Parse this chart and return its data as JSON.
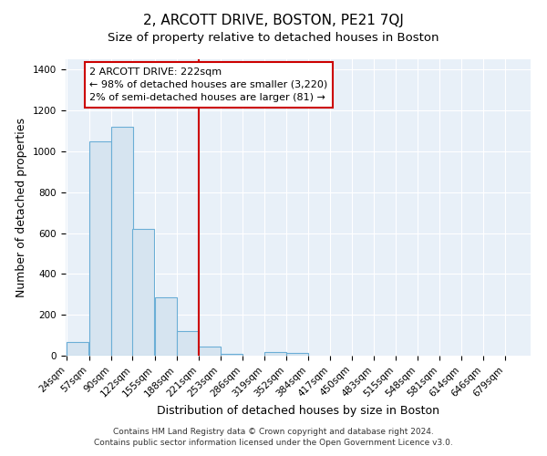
{
  "title": "2, ARCOTT DRIVE, BOSTON, PE21 7QJ",
  "subtitle": "Size of property relative to detached houses in Boston",
  "xlabel": "Distribution of detached houses by size in Boston",
  "ylabel": "Number of detached properties",
  "footnote1": "Contains HM Land Registry data © Crown copyright and database right 2024.",
  "footnote2": "Contains public sector information licensed under the Open Government Licence v3.0.",
  "bin_labels": [
    "24sqm",
    "57sqm",
    "90sqm",
    "122sqm",
    "155sqm",
    "188sqm",
    "221sqm",
    "253sqm",
    "286sqm",
    "319sqm",
    "352sqm",
    "384sqm",
    "417sqm",
    "450sqm",
    "483sqm",
    "515sqm",
    "548sqm",
    "581sqm",
    "614sqm",
    "646sqm",
    "679sqm"
  ],
  "bin_starts": [
    24,
    57,
    90,
    122,
    155,
    188,
    221,
    253,
    286,
    319,
    352,
    384,
    417,
    450,
    483,
    515,
    548,
    581,
    614,
    646,
    679
  ],
  "bar_values": [
    65,
    1050,
    1120,
    620,
    285,
    120,
    45,
    10,
    0,
    20,
    15,
    0,
    0,
    0,
    0,
    0,
    0,
    0,
    0,
    0,
    0
  ],
  "bar_color": "#d6e4f0",
  "bar_edge_color": "#6baed6",
  "property_line_x": 221,
  "property_line_label": "2 ARCOTT DRIVE: 222sqm",
  "annotation_line1": "← 98% of detached houses are smaller (3,220)",
  "annotation_line2": "2% of semi-detached houses are larger (81) →",
  "annotation_box_facecolor": "#ffffff",
  "annotation_box_edgecolor": "#cc0000",
  "vline_color": "#cc0000",
  "ylim": [
    0,
    1450
  ],
  "yticks": [
    0,
    200,
    400,
    600,
    800,
    1000,
    1200,
    1400
  ],
  "bin_width": 33,
  "figure_bg": "#ffffff",
  "axes_bg": "#e8f0f8",
  "grid_color": "#ffffff",
  "title_fontsize": 11,
  "axis_label_fontsize": 9,
  "tick_fontsize": 7.5
}
